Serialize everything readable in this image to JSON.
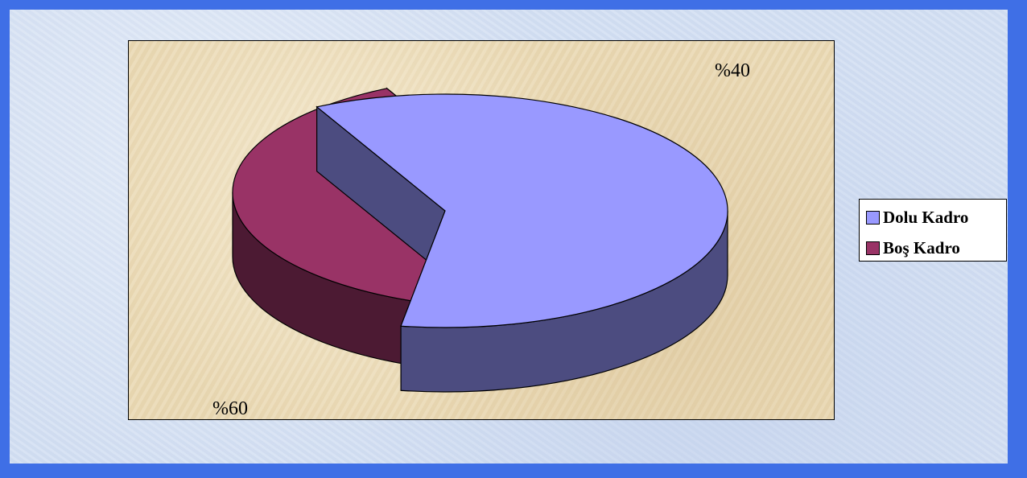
{
  "chart_data": {
    "type": "pie",
    "title": "",
    "categories": [
      "Dolu Kadro",
      "Boş Kadro"
    ],
    "values": [
      60,
      40
    ],
    "data_labels": [
      "%60",
      "%40"
    ],
    "colors": [
      "#9999ff",
      "#993366"
    ],
    "side_colors": [
      "#4c4c80",
      "#4c1a33"
    ],
    "exploded": true,
    "three_d": true,
    "legend_position": "right"
  }
}
